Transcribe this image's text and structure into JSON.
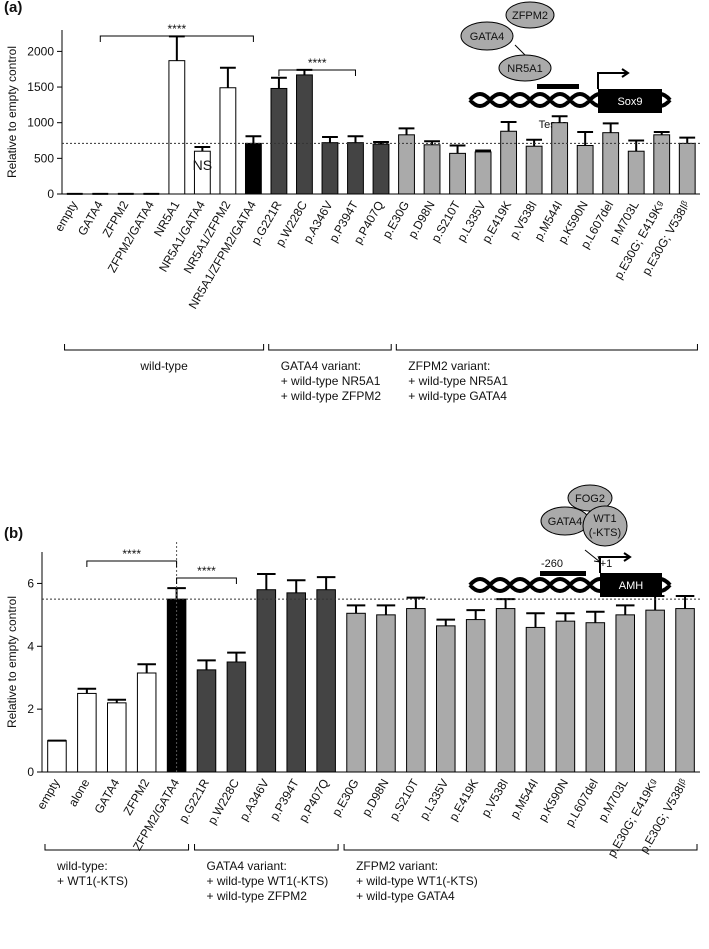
{
  "chart_data": [
    {
      "type": "bar",
      "panel_label": "(a)",
      "y_label": "Relative to empty control",
      "categories": [
        "empty",
        "GATA4",
        "ZFPM2",
        "ZFPM2/GATA4",
        "NR5A1",
        "NR5A1/GATA4",
        "NR5A1/ZFPM2",
        "NR5A1/ZFPM2/GATA4",
        "p.G221R",
        "p.W228C",
        "p.A346V",
        "p.P394T",
        "p.P407Q",
        "p.E30G",
        "p.D98N",
        "p.S210T",
        "p.L335V",
        "p.E419K",
        "p.V538I",
        "p.M544I",
        "p.K590N",
        "p.L607del",
        "p.M703L",
        "p.E30G; E419Kᵍ",
        "p.E30G; V538Iᵝ"
      ],
      "values": [
        1,
        1,
        1,
        1,
        1870,
        600,
        1490,
        710,
        1480,
        1670,
        720,
        720,
        700,
        830,
        690,
        570,
        590,
        880,
        670,
        1000,
        680,
        860,
        600,
        830,
        710
      ],
      "errors": [
        0,
        0,
        0,
        0,
        340,
        60,
        280,
        100,
        150,
        70,
        80,
        90,
        30,
        90,
        50,
        110,
        20,
        130,
        90,
        90,
        190,
        130,
        150,
        40,
        80
      ],
      "colors": [
        "#ffffff",
        "#ffffff",
        "#ffffff",
        "#ffffff",
        "#ffffff",
        "#ffffff",
        "#ffffff",
        "#000000",
        "#444444",
        "#444444",
        "#444444",
        "#444444",
        "#444444",
        "#aaaaaa",
        "#aaaaaa",
        "#aaaaaa",
        "#aaaaaa",
        "#aaaaaa",
        "#aaaaaa",
        "#aaaaaa",
        "#aaaaaa",
        "#aaaaaa",
        "#aaaaaa",
        "#aaaaaa",
        "#aaaaaa"
      ],
      "reference_line": 710,
      "ylim": [
        0,
        2300
      ],
      "yticks": [
        0,
        500,
        1000,
        1500,
        2000
      ],
      "annotations": [
        "****",
        "****",
        "NS"
      ],
      "group_labels": [
        [
          "wild-type"
        ],
        [
          "GATA4 variant:",
          "+ wild-type NR5A1",
          "+ wild-type ZFPM2"
        ],
        [
          "ZFPM2 variant:",
          "+ wild-type NR5A1",
          "+ wild-type GATA4"
        ]
      ],
      "diagram_labels": [
        "GATA4",
        "ZFPM2",
        "NR5A1",
        "Sox9",
        "Tesco"
      ]
    },
    {
      "type": "bar",
      "panel_label": "(b)",
      "y_label": "Relative to empty control",
      "categories": [
        "empty",
        "alone",
        "GATA4",
        "ZFPM2",
        "ZFPM2/GATA4",
        "p.G221R",
        "p.W228C",
        "p.A346V",
        "p.P394T",
        "p.P407Q",
        "p.E30G",
        "p.D98N",
        "p.S210T",
        "p.L335V",
        "p.E419K",
        "p.V538I",
        "p.M544I",
        "p.K590N",
        "p.L607del",
        "p.M703L",
        "p.E30G; E419Kᵍ",
        "p.E30G; V538Iᵝ"
      ],
      "values": [
        1,
        2.5,
        2.2,
        3.15,
        5.5,
        3.25,
        3.5,
        5.8,
        5.7,
        5.8,
        5.05,
        5.0,
        5.2,
        4.65,
        4.85,
        5.2,
        4.6,
        4.8,
        4.75,
        5.0,
        5.15,
        5.2
      ],
      "errors": [
        0,
        0.15,
        0.1,
        0.28,
        0.35,
        0.3,
        0.3,
        0.5,
        0.4,
        0.4,
        0.25,
        0.3,
        0.35,
        0.2,
        0.3,
        0.3,
        0.45,
        0.25,
        0.35,
        0.3,
        0.45,
        0.4
      ],
      "colors": [
        "#ffffff",
        "#ffffff",
        "#ffffff",
        "#ffffff",
        "#000000",
        "#444444",
        "#444444",
        "#444444",
        "#444444",
        "#444444",
        "#aaaaaa",
        "#aaaaaa",
        "#aaaaaa",
        "#aaaaaa",
        "#aaaaaa",
        "#aaaaaa",
        "#aaaaaa",
        "#aaaaaa",
        "#aaaaaa",
        "#aaaaaa",
        "#aaaaaa",
        "#aaaaaa"
      ],
      "reference_line": 5.5,
      "ylim": [
        0,
        7
      ],
      "yticks": [
        0,
        2,
        4,
        6
      ],
      "annotations": [
        "****",
        "****"
      ],
      "group_labels": [
        [
          "wild-type:",
          "+ WT1(-KTS)"
        ],
        [
          "GATA4 variant:",
          "+ wild-type WT1(-KTS)",
          "+ wild-type ZFPM2"
        ],
        [
          "ZFPM2 variant:",
          "+ wild-type WT1(-KTS)",
          "+ wild-type GATA4"
        ]
      ],
      "diagram_labels": [
        "FOG2",
        "GATA4",
        "WT1",
        "(-KTS)",
        "-260",
        "+1",
        "AMH"
      ]
    }
  ]
}
